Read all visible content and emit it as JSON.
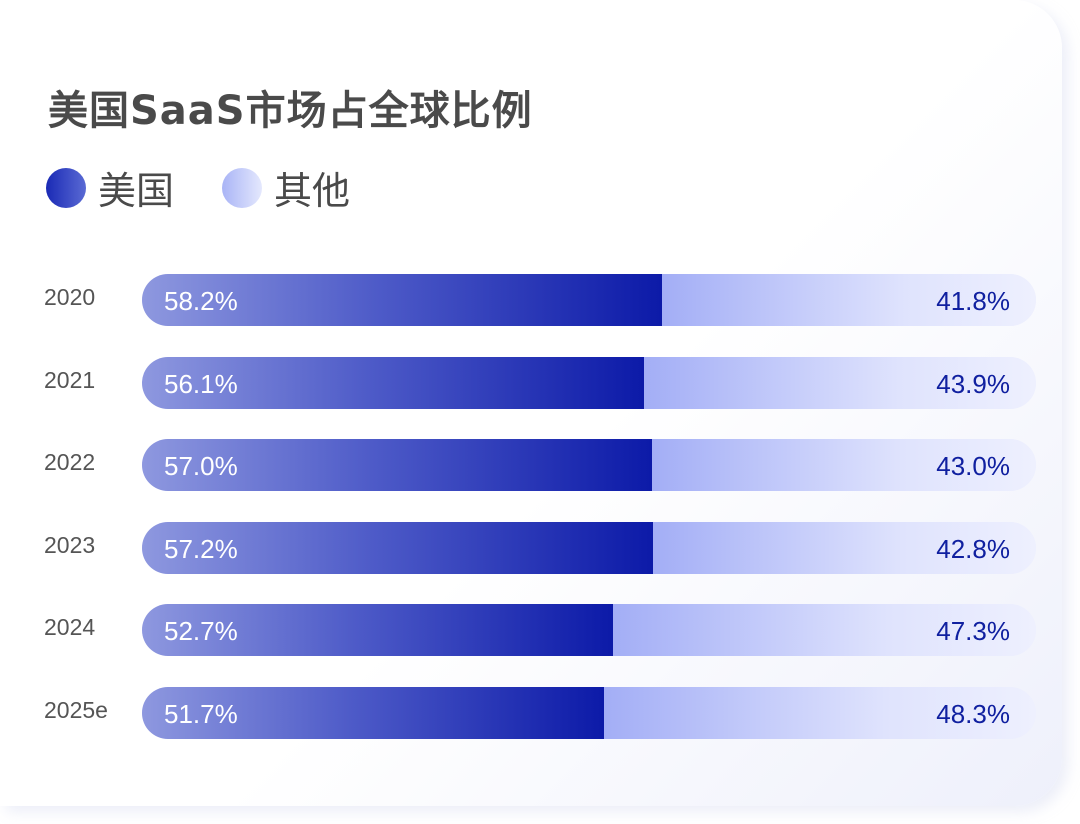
{
  "chart_data": {
    "type": "bar",
    "stacked": true,
    "orientation": "horizontal",
    "title": "美国SaaS市场占全球比例",
    "categories": [
      "2020",
      "2021",
      "2022",
      "2023",
      "2024",
      "2025e"
    ],
    "series": [
      {
        "name": "美国",
        "color": "#1a2ab5",
        "values": [
          58.2,
          56.1,
          57.0,
          57.2,
          52.7,
          51.7
        ],
        "labels": [
          "58.2%",
          "56.1%",
          "57.0%",
          "57.2%",
          "52.7%",
          "51.7%"
        ]
      },
      {
        "name": "其他",
        "color": "#a9b4f6",
        "values": [
          41.8,
          43.9,
          43.0,
          42.8,
          47.3,
          48.3
        ],
        "labels": [
          "41.8%",
          "43.9%",
          "43.0%",
          "42.8%",
          "47.3%",
          "48.3%"
        ]
      }
    ],
    "xlim": [
      0,
      100
    ],
    "legend": "top-left",
    "grid": false
  }
}
